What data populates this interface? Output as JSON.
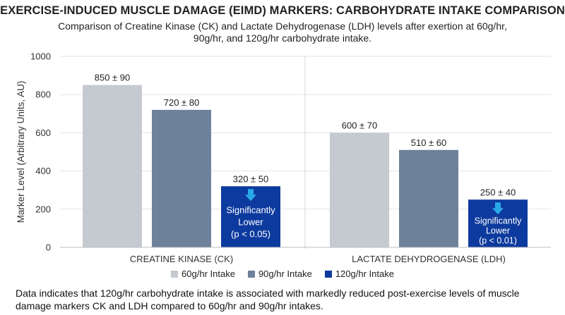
{
  "chart_data": {
    "type": "bar",
    "title": "EXERCISE-INDUCED MUSCLE DAMAGE (EIMD) MARKERS: CARBOHYDRATE INTAKE COMPARISON",
    "subtitle": "Comparison of Creatine Kinase (CK) and Lactate Dehydrogenase (LDH) levels after exertion at 60g/hr, 90g/hr, and 120g/hr carbohydrate intake.",
    "xlabel": "",
    "ylabel": "Marker Level (Arbitrary Units, AU)",
    "ylim": [
      0,
      1000
    ],
    "yticks": [
      0,
      200,
      400,
      600,
      800,
      1000
    ],
    "grid": true,
    "legend_position": "bottom",
    "categories": [
      "CREATINE KINASE (CK)",
      "LACTATE DEHYDROGENASE (LDH)"
    ],
    "series": [
      {
        "name": "60g/hr Intake",
        "color": "#c5cad1",
        "values": [
          850,
          600
        ],
        "labels": [
          "850 ± 90",
          "600 ± 70"
        ]
      },
      {
        "name": "90g/hr Intake",
        "color": "#6e819b",
        "values": [
          720,
          510
        ],
        "labels": [
          "720 ± 80",
          "510 ± 60"
        ]
      },
      {
        "name": "120g/hr Intake",
        "color": "#0d3a9e",
        "values": [
          320,
          250
        ],
        "labels": [
          "320 ± 50",
          "250 ± 40"
        ]
      }
    ],
    "annotations": [
      {
        "category": "CREATINE KINASE (CK)",
        "series": "120g/hr Intake",
        "lines": [
          "Significantly",
          "Lower",
          "(p < 0.05)"
        ],
        "arrow_color": "#29a9e8"
      },
      {
        "category": "LACTATE DEHYDROGENASE (LDH)",
        "series": "120g/hr Intake",
        "lines": [
          "Significantly",
          "Lower",
          "(p < 0.01)"
        ],
        "arrow_color": "#29a9e8"
      }
    ]
  },
  "footnote": "Data indicates that 120g/hr carbohydrate intake is associated with markedly reduced post-exercise levels of muscle damage markers CK and LDH compared to 60g/hr and 90g/hr intakes."
}
